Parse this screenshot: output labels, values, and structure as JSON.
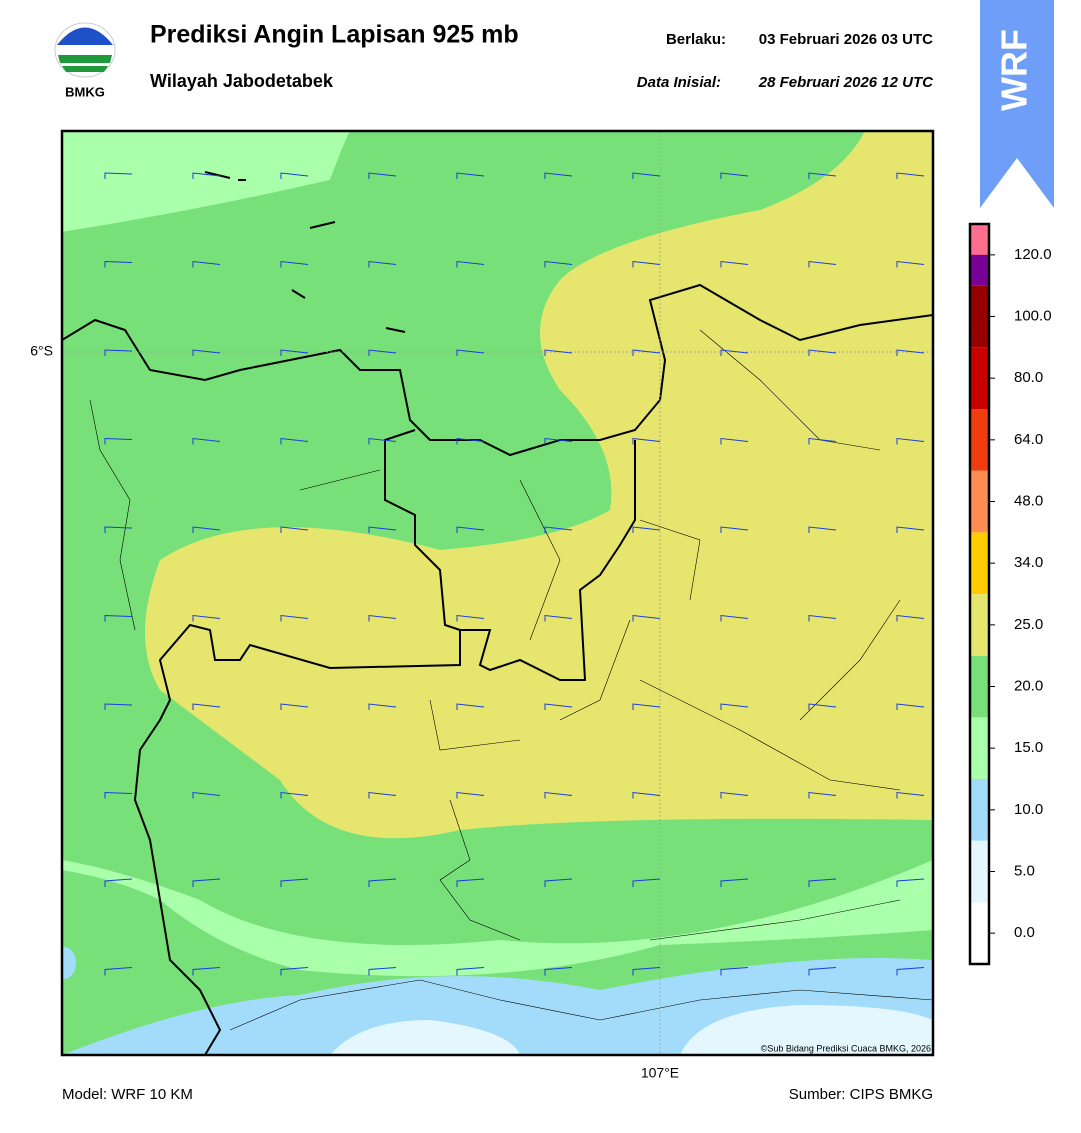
{
  "header": {
    "logo_text": "BMKG",
    "title": "Prediksi Angin Lapisan 925 mb",
    "subtitle": "Wilayah Jabodetabek",
    "valid_label": "Berlaku:",
    "valid_time": "03 Februari 2026 03 UTC",
    "init_label": "Data Inisial:",
    "init_time": "28 Februari 2026 12 UTC",
    "badge": "WRF"
  },
  "map": {
    "lat_label": "6°S",
    "lon_label": "107°E",
    "credit": "©Sub Bidang Prediksi Cuaca BMKG, 2026"
  },
  "colorbar": {
    "colors": [
      "#ffffff",
      "#e4f7ff",
      "#a3dcfa",
      "#aaffaa",
      "#78e078",
      "#e6e66e",
      "#ffcc00",
      "#ff8c50",
      "#f03c0f",
      "#c80000",
      "#960000",
      "#780096",
      "#ff6e8c"
    ],
    "ticks": [
      {
        "value": 0,
        "label": "0.0"
      },
      {
        "value": 5,
        "label": "5.0"
      },
      {
        "value": 10,
        "label": "10.0"
      },
      {
        "value": 15,
        "label": "15.0"
      },
      {
        "value": 20,
        "label": "20.0"
      },
      {
        "value": 25,
        "label": "25.0"
      },
      {
        "value": 34,
        "label": "34.0"
      },
      {
        "value": 48,
        "label": "48.0"
      },
      {
        "value": 64,
        "label": "64.0"
      },
      {
        "value": 80,
        "label": "80.0"
      },
      {
        "value": 100,
        "label": "100.0"
      },
      {
        "value": 120,
        "label": "120.0"
      }
    ]
  },
  "footer": {
    "model": "Model: WRF 10 KM",
    "source": "Sumber: CIPS BMKG"
  }
}
